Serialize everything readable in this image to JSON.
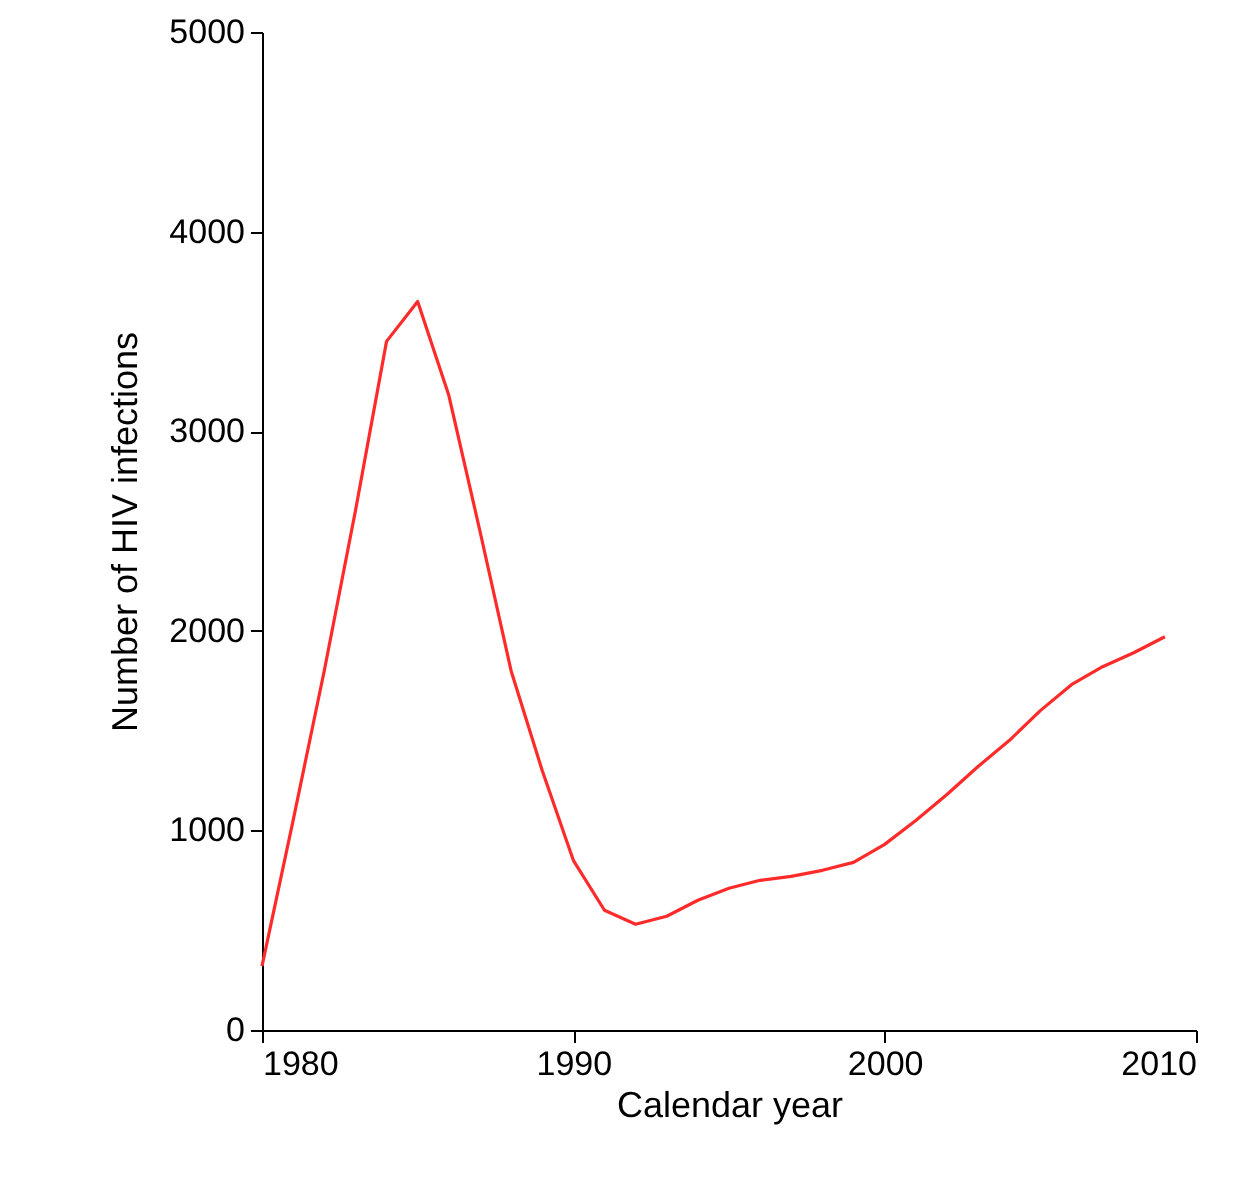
{
  "chart_data": {
    "type": "line",
    "xlabel": "Calendar year",
    "ylabel": "Number of HIV infections",
    "x": [
      1980,
      1981,
      1982,
      1983,
      1984,
      1985,
      1986,
      1987,
      1988,
      1989,
      1990,
      1991,
      1992,
      1993,
      1994,
      1995,
      1996,
      1997,
      1998,
      1999,
      2000,
      2001,
      2002,
      2003,
      2004,
      2005,
      2006,
      2007,
      2008,
      2009
    ],
    "series": [
      {
        "color": "#ff2a2a",
        "values": [
          320,
          1050,
          1800,
          2600,
          3450,
          3650,
          3180,
          2500,
          1800,
          1300,
          850,
          600,
          530,
          570,
          650,
          710,
          750,
          770,
          800,
          840,
          930,
          1050,
          1180,
          1320,
          1450,
          1600,
          1730,
          1820,
          1890,
          1970
        ]
      }
    ],
    "xlim": [
      1980,
      2010
    ],
    "xticks": [
      1980,
      1990,
      2000,
      2010
    ],
    "ylim": [
      0,
      5000
    ],
    "yticks": [
      0,
      1000,
      2000,
      3000,
      4000,
      5000
    ],
    "grid": false,
    "marker": "none",
    "line_style": "solid"
  }
}
